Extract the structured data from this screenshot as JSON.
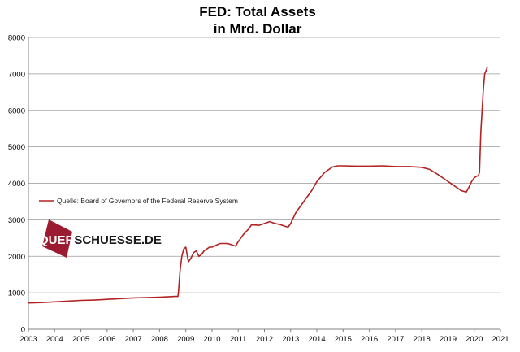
{
  "chart_data": {
    "type": "line",
    "title": [
      "FED: Total Assets",
      "in Mrd. Dollar"
    ],
    "xlabel": "",
    "ylabel": "",
    "xlim": [
      2003,
      2021
    ],
    "ylim": [
      0,
      8000
    ],
    "x_ticks": [
      "2003",
      "2004",
      "2005",
      "2006",
      "2007",
      "2008",
      "2009",
      "2010",
      "2011",
      "2012",
      "2013",
      "2014",
      "2015",
      "2016",
      "2017",
      "2018",
      "2019",
      "2020",
      "2021"
    ],
    "y_ticks": [
      "0",
      "1000",
      "2000",
      "3000",
      "4000",
      "5000",
      "6000",
      "7000",
      "8000"
    ],
    "grid": "horizontal",
    "legend_position": "left, middle",
    "series": [
      {
        "name": "Quelle: Board of Governors of the Federal Reserve System",
        "color": "#b22222",
        "x": [
          2003.0,
          2003.5,
          2004.0,
          2004.5,
          2005.0,
          2005.5,
          2006.0,
          2006.5,
          2007.0,
          2007.5,
          2008.0,
          2008.3,
          2008.6,
          2008.7,
          2008.72,
          2008.78,
          2008.85,
          2008.92,
          2009.0,
          2009.1,
          2009.2,
          2009.3,
          2009.4,
          2009.5,
          2009.6,
          2009.7,
          2009.8,
          2009.9,
          2010.0,
          2010.3,
          2010.6,
          2010.9,
          2011.0,
          2011.2,
          2011.4,
          2011.5,
          2011.6,
          2011.8,
          2012.0,
          2012.2,
          2012.4,
          2012.6,
          2012.8,
          2012.9,
          2013.0,
          2013.2,
          2013.5,
          2013.8,
          2014.0,
          2014.3,
          2014.6,
          2014.8,
          2015.0,
          2015.5,
          2016.0,
          2016.5,
          2017.0,
          2017.5,
          2018.0,
          2018.3,
          2018.6,
          2018.9,
          2019.2,
          2019.5,
          2019.7,
          2019.8,
          2019.9,
          2020.0,
          2020.1,
          2020.15,
          2020.2,
          2020.25,
          2020.3,
          2020.35,
          2020.4,
          2020.5
        ],
        "y": [
          720,
          730,
          750,
          770,
          790,
          800,
          820,
          840,
          860,
          870,
          880,
          890,
          900,
          900,
          1000,
          1600,
          2000,
          2200,
          2250,
          1850,
          1950,
          2100,
          2150,
          2000,
          2050,
          2150,
          2200,
          2250,
          2250,
          2350,
          2350,
          2280,
          2400,
          2600,
          2750,
          2860,
          2860,
          2850,
          2900,
          2950,
          2900,
          2870,
          2820,
          2800,
          2900,
          3200,
          3500,
          3800,
          4050,
          4300,
          4450,
          4480,
          4480,
          4470,
          4470,
          4480,
          4460,
          4460,
          4440,
          4380,
          4250,
          4100,
          3950,
          3800,
          3760,
          3900,
          4050,
          4150,
          4200,
          4200,
          4300,
          5400,
          6000,
          6600,
          7000,
          7180
        ]
      }
    ]
  },
  "watermark": {
    "text_white": "QUER",
    "text_dark": "SCHUESSE.DE",
    "square_color": "#9b1c31"
  }
}
